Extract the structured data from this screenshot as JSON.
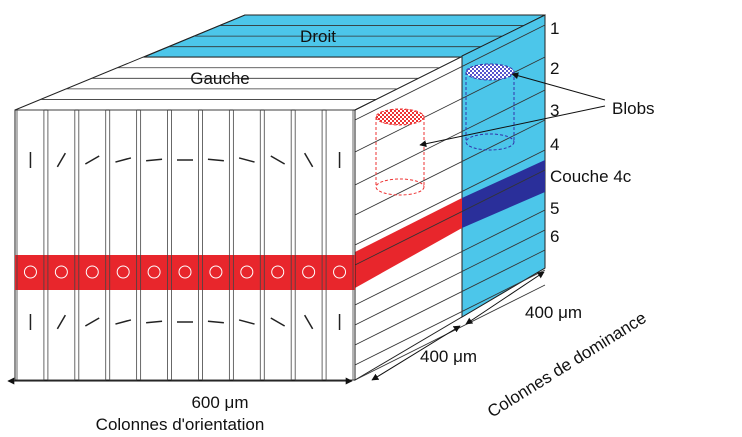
{
  "faces": {
    "back": "Droit",
    "front": "Gauche"
  },
  "layers": [
    "1",
    "2",
    "3",
    "4",
    "Couche 4c",
    "5",
    "6"
  ],
  "callout": "Blobs",
  "dimensions": {
    "width_label": "600 μm",
    "width_caption": "Colonnes d'orientation",
    "depth_label": "400 μm",
    "dominance_label": "400 μm",
    "dominance_caption": "Colonnes de dominance"
  }
}
